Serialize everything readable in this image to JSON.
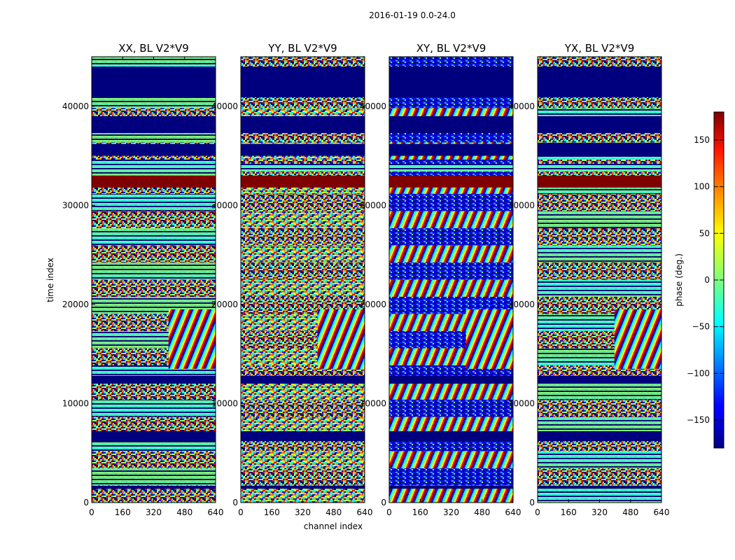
{
  "chart_data": {
    "type": "heatmap",
    "suptitle": "2016-01-19 0.0-24.0",
    "xlabel": "channel index",
    "ylabel": "time index",
    "xlim": [
      0,
      640
    ],
    "ylim": [
      0,
      45000
    ],
    "xticks": [
      0,
      160,
      320,
      480,
      640
    ],
    "yticks": [
      0,
      10000,
      20000,
      30000,
      40000
    ],
    "panels": [
      {
        "title": "XX, BL V2*V9"
      },
      {
        "title": "YY, BL V2*V9"
      },
      {
        "title": "XY, BL V2*V9"
      },
      {
        "title": "YX, BL V2*V9"
      }
    ],
    "flagged_rows": [
      [
        35000,
        36200
      ],
      [
        37300,
        39000
      ],
      [
        40900,
        44000
      ],
      [
        12000,
        12800
      ],
      [
        6200,
        7200
      ],
      [
        1400,
        1700
      ]
    ],
    "colorbar": {
      "label": "phase (deg.)",
      "range": [
        -180,
        180
      ],
      "ticks": [
        -150,
        -100,
        -50,
        0,
        50,
        100,
        150
      ],
      "colormap": "jet"
    }
  }
}
